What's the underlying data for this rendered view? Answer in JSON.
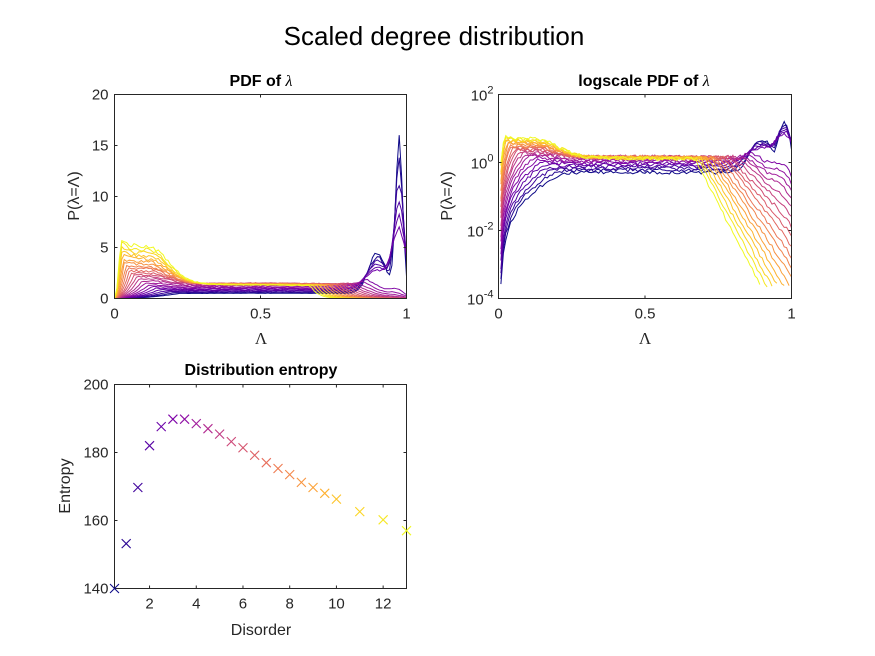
{
  "figure": {
    "suptitle": "Scaled degree distribution"
  },
  "chart_data": [
    {
      "type": "line",
      "title": "PDF of λ",
      "title_prefix": "PDF of",
      "title_symbol": "λ",
      "xlabel": "Λ",
      "ylabel": "P(λ=Λ)",
      "xlim": [
        0,
        1
      ],
      "ylim": [
        0,
        20
      ],
      "yscale": "linear",
      "xticks": [
        "0",
        "0.5",
        "1"
      ],
      "yticks": [
        "0",
        "5",
        "10",
        "15",
        "20"
      ],
      "grid": false,
      "colormap": "plasma",
      "series_count": 24,
      "series_note": "one curve per disorder value; dark blue = low disorder, yellow = high disorder",
      "series_examples": [
        {
          "color": "#0d0887",
          "x": [
            0,
            0.1,
            0.3,
            0.5,
            0.7,
            0.85,
            0.9,
            0.93,
            0.96,
            0.98,
            1
          ],
          "y": [
            0,
            0.02,
            0.1,
            0.3,
            0.8,
            2.5,
            5.2,
            4.0,
            6.0,
            16.0,
            0
          ]
        },
        {
          "color": "#f0f921",
          "x": [
            0,
            0.02,
            0.05,
            0.1,
            0.2,
            0.3,
            0.5,
            0.7,
            0.85,
            1
          ],
          "y": [
            0,
            6.0,
            4.5,
            3.2,
            2.0,
            1.3,
            0.8,
            0.3,
            0.05,
            0
          ]
        }
      ]
    },
    {
      "type": "line",
      "title": "logscale PDF of λ",
      "title_prefix": "logscale PDF of",
      "title_symbol": "λ",
      "xlabel": "Λ",
      "ylabel": "P(λ=Λ)",
      "xlim": [
        0,
        1
      ],
      "ylim": [
        0.0001,
        100
      ],
      "yscale": "log",
      "xticks": [
        "0",
        "0.5",
        "1"
      ],
      "yticks": [
        {
          "base": "10",
          "exp": "-4"
        },
        {
          "base": "10",
          "exp": "-2"
        },
        {
          "base": "10",
          "exp": "0"
        },
        {
          "base": "10",
          "exp": "2"
        }
      ],
      "grid": false,
      "colormap": "plasma",
      "series_count": 24
    },
    {
      "type": "scatter",
      "title": "Distribution entropy",
      "xlabel": "Disorder",
      "ylabel": "Entropy",
      "xlim": [
        0.5,
        13
      ],
      "ylim": [
        140,
        200
      ],
      "xticks": [
        "2",
        "4",
        "6",
        "8",
        "10",
        "12"
      ],
      "yticks": [
        "140",
        "160",
        "180",
        "200"
      ],
      "marker": "x",
      "grid": false,
      "x": [
        0.5,
        1,
        1.5,
        2,
        2.5,
        3,
        3.5,
        4,
        4.5,
        5,
        5.5,
        6,
        6.5,
        7,
        7.5,
        8,
        8.5,
        9,
        9.5,
        10,
        11,
        12,
        13
      ],
      "y": [
        140,
        153.2,
        169.7,
        182,
        187.6,
        189.8,
        189.8,
        188.5,
        187,
        185.4,
        183.2,
        181.4,
        179.2,
        177,
        175.3,
        173.5,
        171.2,
        169.7,
        168,
        166.3,
        162.6,
        160.2,
        157
      ],
      "colors": [
        "#0d0887",
        "#2a0593",
        "#41049d",
        "#5702a5",
        "#6a00a8",
        "#7e03a8",
        "#8f0da4",
        "#a11b9b",
        "#b12a90",
        "#bf3984",
        "#cc4778",
        "#d5546e",
        "#de6164",
        "#e76e5b",
        "#ee7b51",
        "#f48849",
        "#f89540",
        "#fca338",
        "#feb030",
        "#fdc328",
        "#fbd524",
        "#f6e726",
        "#f0f921"
      ]
    }
  ]
}
